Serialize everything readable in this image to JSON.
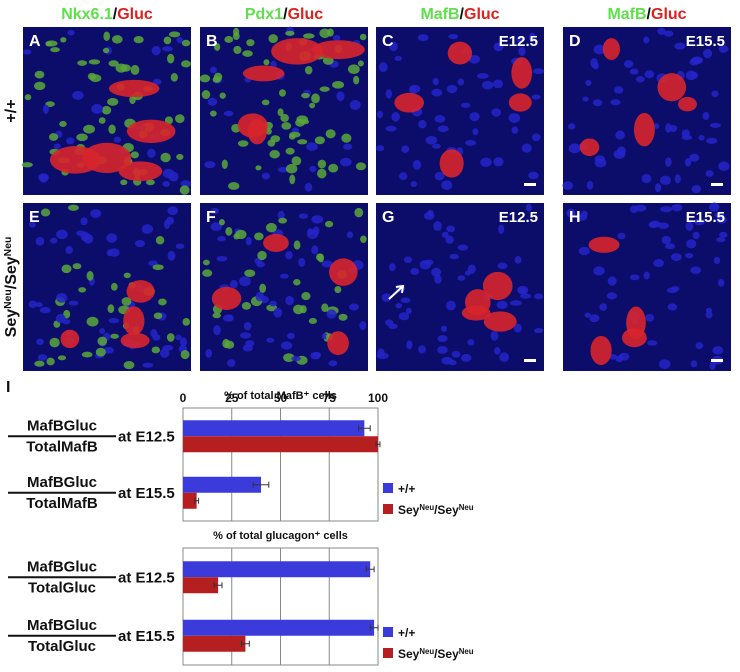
{
  "headers": [
    {
      "marker": "Nkx6.1",
      "sep": "/",
      "stain": "Gluc"
    },
    {
      "marker": "Pdx1",
      "sep": "/",
      "stain": "Gluc"
    },
    {
      "marker": "MafB",
      "sep": "/",
      "stain": "Gluc"
    },
    {
      "marker": "MafB",
      "sep": "/",
      "stain": "Gluc"
    }
  ],
  "rows": [
    {
      "label": [
        "+/+"
      ]
    },
    {
      "label": [
        "Sey",
        "Neu",
        "/Sey",
        "Neu"
      ]
    }
  ],
  "images": [
    [
      {
        "letter": "A"
      },
      {
        "letter": "B"
      },
      {
        "letter": "C",
        "stage": "E12.5"
      },
      {
        "letter": "D",
        "stage": "E15.5"
      }
    ],
    [
      {
        "letter": "E"
      },
      {
        "letter": "F"
      },
      {
        "letter": "G",
        "stage": "E12.5"
      },
      {
        "letter": "H",
        "stage": "E15.5"
      }
    ]
  ],
  "figure_label": "I",
  "chart_data": [
    {
      "type": "bar",
      "orientation": "horizontal",
      "title": "% of total MafB⁺ cells",
      "categories": [
        {
          "numerator": "MafBGluc",
          "denominator": "TotalMafB",
          "stage": "at E12.5"
        },
        {
          "numerator": "MafBGluc",
          "denominator": "TotalMafB",
          "stage": "at E15.5"
        }
      ],
      "series": [
        {
          "name": [
            "+/+"
          ],
          "color": "#3b3bdc",
          "values": [
            93,
            40
          ],
          "errors": [
            3,
            4
          ]
        },
        {
          "name": [
            "Sey",
            "Neu",
            "/Sey",
            "Neu"
          ],
          "color": "#b51f1f",
          "values": [
            100,
            7
          ],
          "errors": [
            1,
            1
          ]
        }
      ],
      "xlim": [
        0,
        100
      ],
      "xticks": [
        0,
        25,
        50,
        75,
        100
      ],
      "grid": true,
      "show_tick_labels": true
    },
    {
      "type": "bar",
      "orientation": "horizontal",
      "title": "% of total glucagon⁺ cells",
      "categories": [
        {
          "numerator": "MafBGluc",
          "denominator": "TotalGluc",
          "stage": "at E12.5"
        },
        {
          "numerator": "MafBGluc",
          "denominator": "TotalGluc",
          "stage": "at E15.5"
        }
      ],
      "series": [
        {
          "name": [
            "+/+"
          ],
          "color": "#3b3bdc",
          "values": [
            96,
            98
          ],
          "errors": [
            2,
            2
          ]
        },
        {
          "name": [
            "Sey",
            "Neu",
            "/Sey",
            "Neu"
          ],
          "color": "#b51f1f",
          "values": [
            18,
            32
          ],
          "errors": [
            2,
            2
          ]
        }
      ],
      "xlim": [
        0,
        100
      ],
      "xticks": [
        0,
        25,
        50,
        75,
        100
      ],
      "grid": true,
      "show_tick_labels": false
    }
  ]
}
